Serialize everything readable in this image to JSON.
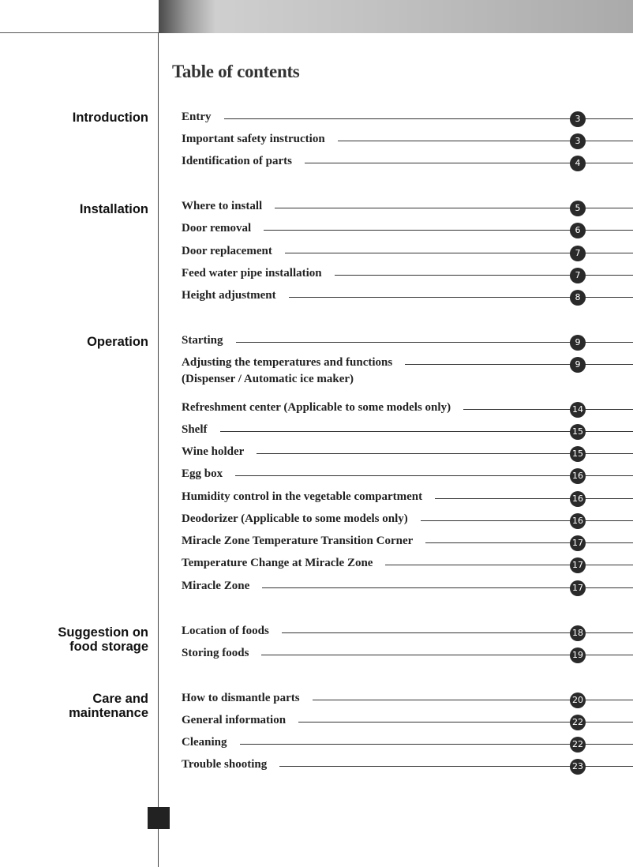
{
  "title": "Table of contents",
  "sections": [
    {
      "label_lines": [
        "Introduction"
      ],
      "entries": [
        {
          "text": "Entry",
          "page": "3"
        },
        {
          "text": "Important safety instruction",
          "page": "3"
        },
        {
          "text": "Identification of parts",
          "page": "4"
        }
      ]
    },
    {
      "label_lines": [
        "Installation"
      ],
      "entries": [
        {
          "text": "Where to install",
          "page": "5"
        },
        {
          "text": "Door removal",
          "page": "6"
        },
        {
          "text": "Door replacement",
          "page": "7"
        },
        {
          "text": "Feed water pipe installation",
          "page": "7"
        },
        {
          "text": "Height adjustment",
          "page": "8"
        }
      ]
    },
    {
      "label_lines": [
        "Operation"
      ],
      "entries": [
        {
          "text": "Starting",
          "page": "9"
        },
        {
          "text": "Adjusting the temperatures and functions",
          "text2": "(Dispenser / Automatic ice maker)",
          "page": "9"
        },
        {
          "text": "Refreshment center (Applicable to some models only)",
          "page": "14"
        },
        {
          "text": "Shelf",
          "page": "15"
        },
        {
          "text": "Wine holder",
          "page": "15"
        },
        {
          "text": "Egg box",
          "page": "16"
        },
        {
          "text": "Humidity control in the vegetable compartment",
          "page": "16"
        },
        {
          "text": "Deodorizer (Applicable to some models only)",
          "page": "16"
        },
        {
          "text": "Miracle Zone Temperature Transition Corner",
          "page": "17"
        },
        {
          "text": "Temperature Change at Miracle Zone",
          "page": "17"
        },
        {
          "text": "Miracle Zone",
          "page": "17"
        }
      ]
    },
    {
      "label_lines": [
        "Suggestion on",
        "food storage"
      ],
      "entries": [
        {
          "text": "Location of foods",
          "page": "18"
        },
        {
          "text": "Storing foods",
          "page": "19"
        }
      ]
    },
    {
      "label_lines": [
        "Care and",
        "maintenance"
      ],
      "entries": [
        {
          "text": "How to dismantle parts",
          "page": "20"
        },
        {
          "text": "General information",
          "page": "22"
        },
        {
          "text": "Cleaning",
          "page": "22"
        },
        {
          "text": "Trouble shooting",
          "page": "23"
        }
      ]
    }
  ]
}
